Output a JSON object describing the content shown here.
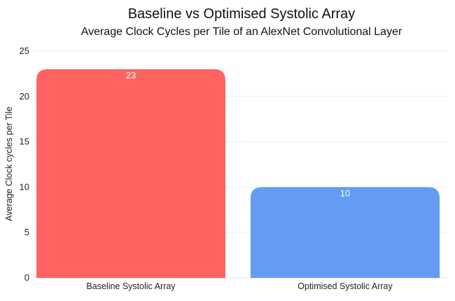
{
  "chart_data": {
    "type": "bar",
    "title": "Baseline vs Optimised Systolic Array",
    "subtitle": "Average Clock Cycles per Tile of an AlexNet Convolutional Layer",
    "xlabel": "",
    "ylabel": "Average Clock cycles per Tile",
    "categories": [
      "Baseline Systolic Array",
      "Optimised Systolic Array"
    ],
    "values": [
      23,
      10
    ],
    "colors": [
      "#ff6361",
      "#639cf2"
    ],
    "ylim": [
      0,
      25
    ],
    "yticks": [
      0,
      5,
      10,
      15,
      20,
      25
    ],
    "grid": true,
    "legend": "none",
    "data_labels": true
  }
}
